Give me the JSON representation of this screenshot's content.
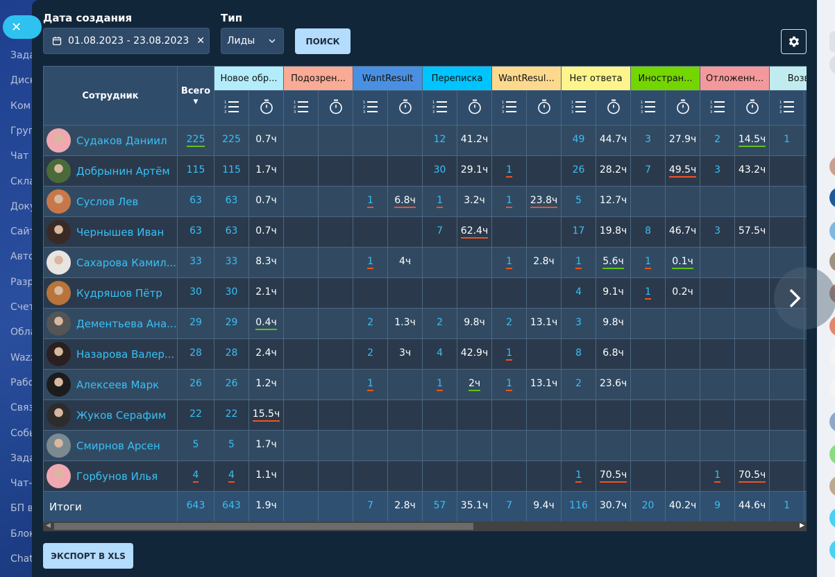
{
  "sidebar": {
    "items": [
      "Зада",
      "Диск",
      "Ком",
      "Груп",
      "Чат и",
      "Скла",
      "Доку",
      "Сайт",
      "Авто",
      "Разр",
      "Счет",
      "Обла",
      "Wazz",
      "Рабо",
      "Связ",
      "Собы",
      "Зада",
      "Чат-",
      "БП в",
      "Блок",
      "Chat"
    ]
  },
  "filters": {
    "date_label": "Дата создания",
    "date_value": "01.08.2023 - 23.08.2023",
    "type_label": "Тип",
    "type_value": "Лиды",
    "search_button": "ПОИСК"
  },
  "table": {
    "employee_header": "Сотрудник",
    "total_header": "Всего",
    "statuses": [
      {
        "label": "Новое обр...",
        "color": "#b3ecfa"
      },
      {
        "label": "Подозрен...",
        "color": "#f9ab95"
      },
      {
        "label": "WantResult",
        "color": "#4a90e2"
      },
      {
        "label": "Переписка",
        "color": "#00c4ff"
      },
      {
        "label": "WantResul...",
        "color": "#fdd98e"
      },
      {
        "label": "Нет ответа",
        "color": "#fdf58c"
      },
      {
        "label": "Иностран...",
        "color": "#74d600"
      },
      {
        "label": "Отложенн...",
        "color": "#f4999b"
      },
      {
        "label": "Возвра",
        "color": "#c0ecf0"
      }
    ],
    "rows": [
      {
        "name": "Судаков Даниил",
        "avatar": "#f0a8b0",
        "total": {
          "v": "225",
          "mark": "green"
        },
        "cells": [
          "225",
          "0.7ч",
          "",
          "",
          "",
          "",
          "12",
          "41.2ч",
          "",
          "",
          "49",
          "44.7ч",
          "3",
          "27.9ч",
          "2",
          {
            "v": "14.5ч",
            "mark": "green"
          },
          "1",
          ""
        ]
      },
      {
        "name": "Добрынин Артём",
        "avatar": "#4a6a3a",
        "total": "115",
        "cells": [
          "115",
          "1.7ч",
          "",
          "",
          "",
          "",
          "30",
          "29.1ч",
          {
            "v": "1",
            "mark": "orange"
          },
          "",
          "26",
          "28.2ч",
          "7",
          {
            "v": "49.5ч",
            "mark": "orange"
          },
          "3",
          "43.2ч",
          "",
          ""
        ]
      },
      {
        "name": "Суслов Лев",
        "avatar": "#c7784a",
        "total": "63",
        "cells": [
          "63",
          "0.7ч",
          "",
          "",
          {
            "v": "1",
            "mark": "orange"
          },
          {
            "v": "6.8ч",
            "mark": "orange"
          },
          {
            "v": "1",
            "mark": "orange"
          },
          "3.2ч",
          {
            "v": "1",
            "mark": "orange"
          },
          {
            "v": "23.8ч",
            "mark": "orange"
          },
          "5",
          "12.7ч",
          "",
          "",
          "",
          "",
          "",
          ""
        ]
      },
      {
        "name": "Чернышев Иван",
        "avatar": "#3a2a24",
        "total": "63",
        "cells": [
          "63",
          "0.7ч",
          "",
          "",
          "",
          "",
          "7",
          {
            "v": "62.4ч",
            "mark": "orange"
          },
          "",
          "",
          "17",
          "19.8ч",
          "8",
          "46.7ч",
          "3",
          "57.5ч",
          "",
          ""
        ]
      },
      {
        "name": "Сахарова Камил...",
        "avatar": "#e8e4e0",
        "total": "33",
        "cells": [
          "33",
          "8.3ч",
          "",
          "",
          {
            "v": "1",
            "mark": "orange"
          },
          "4ч",
          "",
          "",
          {
            "v": "1",
            "mark": "orange"
          },
          "2.8ч",
          {
            "v": "1",
            "mark": "orange"
          },
          {
            "v": "5.6ч",
            "mark": "green"
          },
          {
            "v": "1",
            "mark": "orange"
          },
          {
            "v": "0.1ч",
            "mark": "green"
          },
          "",
          "",
          "",
          ""
        ]
      },
      {
        "name": "Кудряшов Пётр",
        "avatar": "#b8743a",
        "total": "30",
        "cells": [
          "30",
          "2.1ч",
          "",
          "",
          "",
          "",
          "",
          "",
          "",
          "",
          "4",
          "9.1ч",
          {
            "v": "1",
            "mark": "orange"
          },
          "0.2ч",
          "",
          "",
          "",
          ""
        ]
      },
      {
        "name": "Дементьева Ана...",
        "avatar": "#555555",
        "total": "29",
        "cells": [
          "29",
          {
            "v": "0.4ч",
            "mark": "green"
          },
          "",
          "",
          "2",
          "1.3ч",
          "2",
          "9.8ч",
          "2",
          "13.1ч",
          "3",
          "9.8ч",
          "",
          "",
          "",
          "",
          "",
          ""
        ]
      },
      {
        "name": "Назарова Валер...",
        "avatar": "#2a2020",
        "total": "28",
        "cells": [
          "28",
          "2.4ч",
          "",
          "",
          "2",
          "3ч",
          "4",
          "42.9ч",
          {
            "v": "1",
            "mark": "orange"
          },
          "",
          "8",
          "6.8ч",
          "",
          "",
          "",
          "",
          "",
          ""
        ]
      },
      {
        "name": "Алексеев Марк",
        "avatar": "#1c1c1c",
        "total": "26",
        "cells": [
          "26",
          "1.2ч",
          "",
          "",
          {
            "v": "1",
            "mark": "orange"
          },
          "",
          {
            "v": "1",
            "mark": "orange"
          },
          {
            "v": "2ч",
            "mark": "green"
          },
          {
            "v": "1",
            "mark": "orange"
          },
          "13.1ч",
          "2",
          "23.6ч",
          "",
          "",
          "",
          "",
          "",
          ""
        ]
      },
      {
        "name": "Жуков Серафим",
        "avatar": "#2c2c2c",
        "total": "22",
        "cells": [
          "22",
          {
            "v": "15.5ч",
            "mark": "orange"
          },
          "",
          "",
          "",
          "",
          "",
          "",
          "",
          "",
          "",
          "",
          "",
          "",
          "",
          "",
          "",
          ""
        ]
      },
      {
        "name": "Смирнов Арсен",
        "avatar": "#7a8a90",
        "total": "5",
        "cells": [
          "5",
          "1.7ч",
          "",
          "",
          "",
          "",
          "",
          "",
          "",
          "",
          "",
          "",
          "",
          "",
          "",
          "",
          "",
          ""
        ]
      },
      {
        "name": "Горбунов Илья",
        "avatar": "#f0a8b0",
        "total": {
          "v": "4",
          "mark": "orange"
        },
        "cells": [
          {
            "v": "4",
            "mark": "orange"
          },
          "1.1ч",
          "",
          "",
          "",
          "",
          "",
          "",
          "",
          "",
          {
            "v": "1",
            "mark": "orange"
          },
          {
            "v": "70.5ч",
            "mark": "orange"
          },
          "",
          "",
          {
            "v": "1",
            "mark": "orange"
          },
          {
            "v": "70.5ч",
            "mark": "orange"
          },
          "",
          ""
        ]
      }
    ],
    "totals": {
      "label": "Итоги",
      "total": "643",
      "cells": [
        "643",
        "1.9ч",
        "",
        "",
        "7",
        "2.8ч",
        "57",
        "35.1ч",
        "7",
        "9.4ч",
        "116",
        "30.7ч",
        "20",
        "40.2ч",
        "9",
        "44.6ч",
        "1",
        ""
      ]
    }
  },
  "export_button": "ЭКСПОРТ В XLS"
}
